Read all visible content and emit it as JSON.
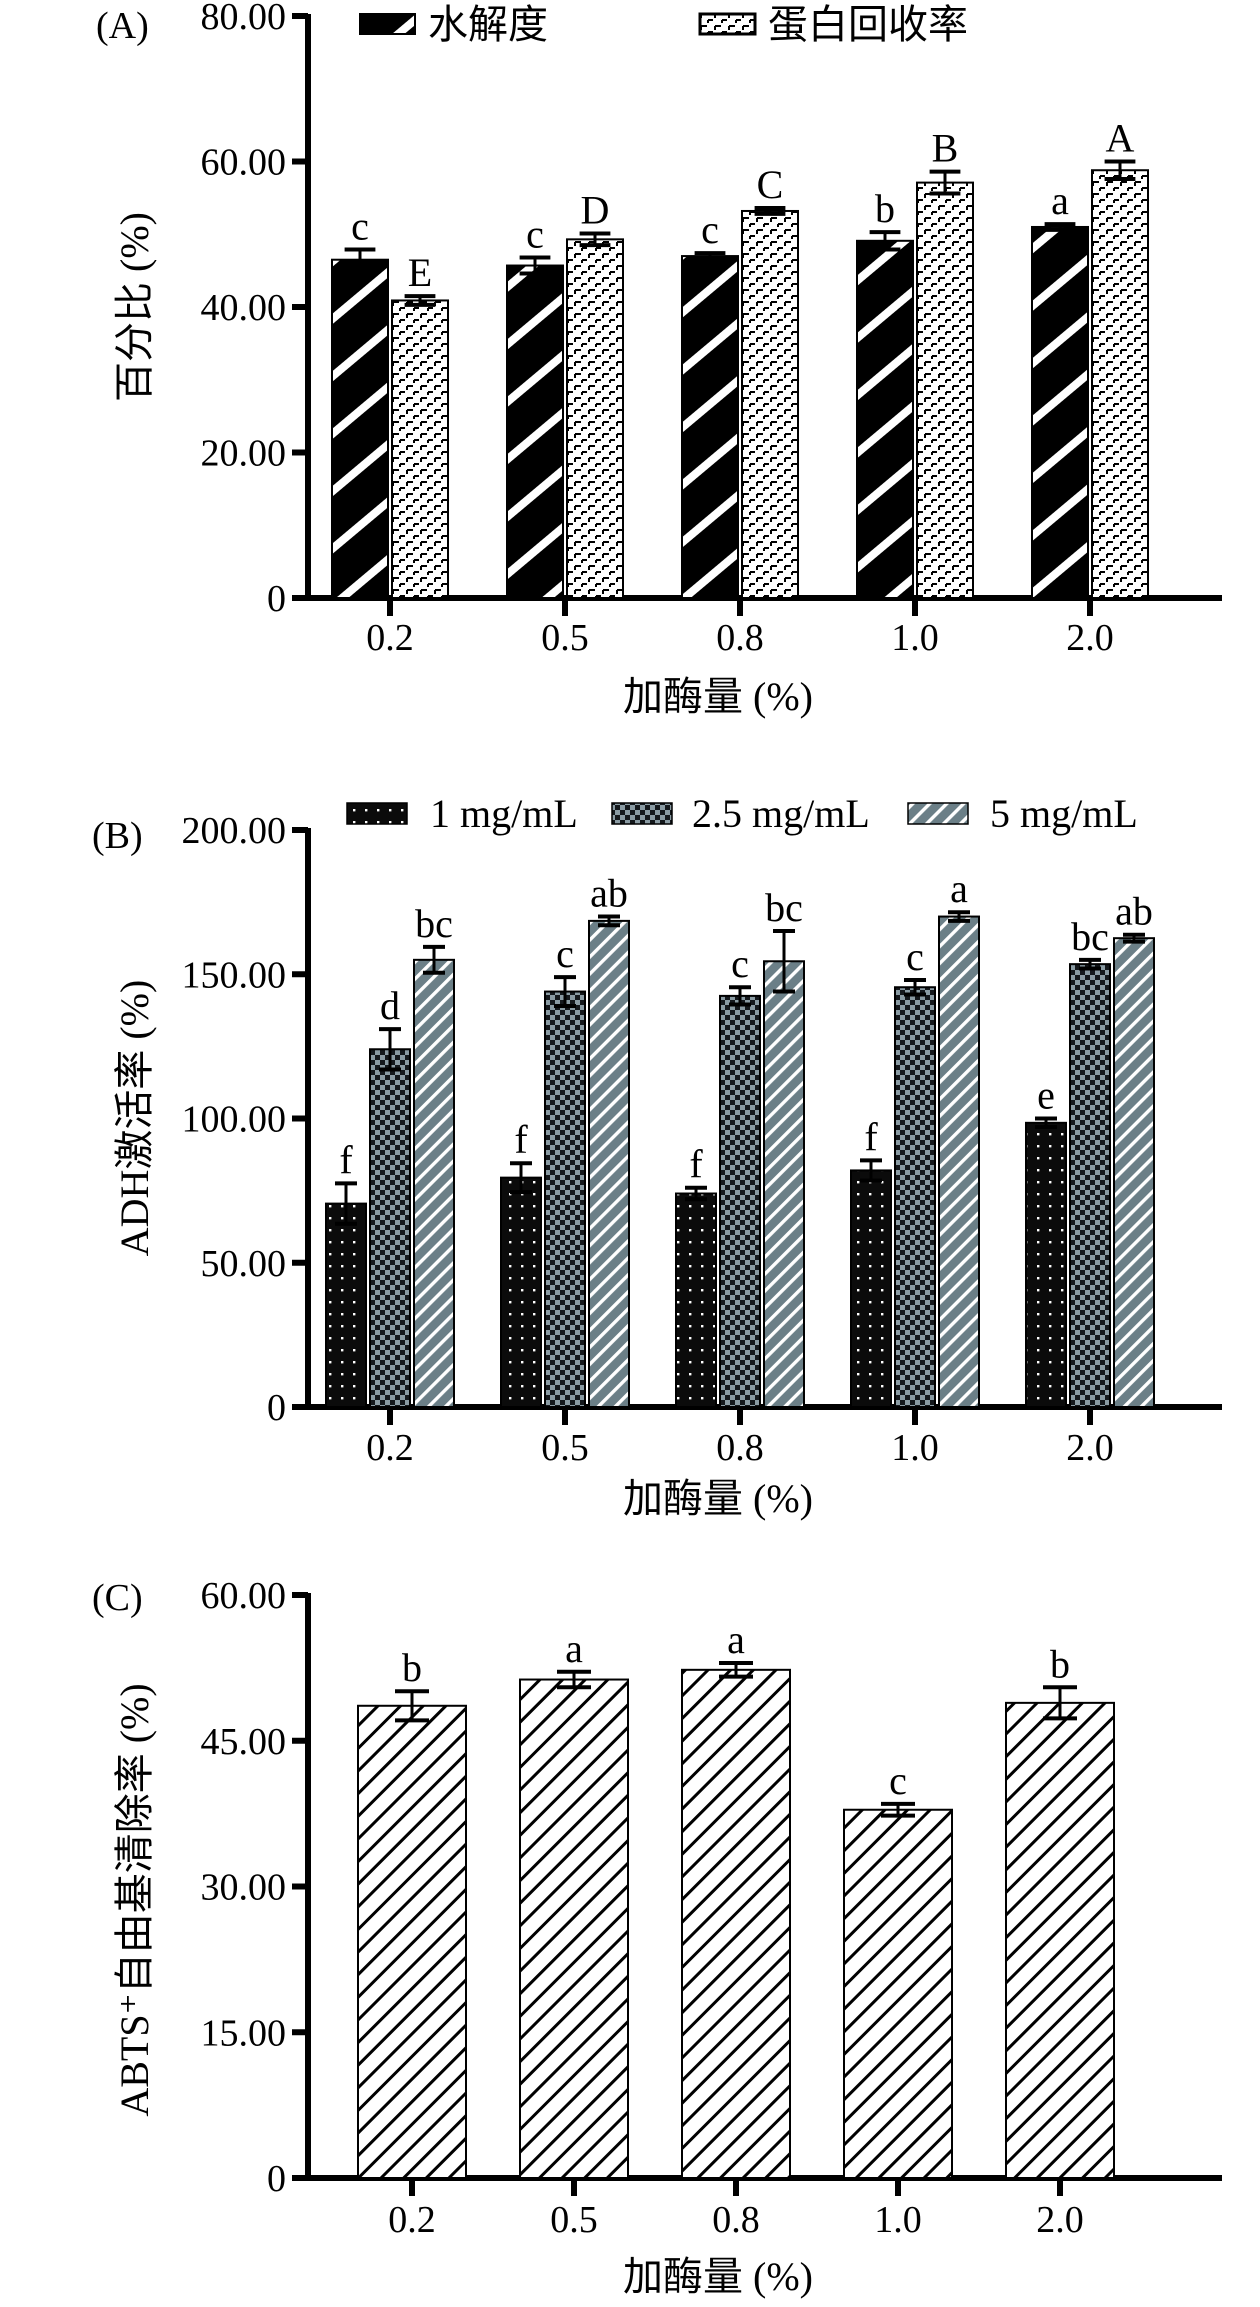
{
  "chart_data": [
    {
      "id": "A",
      "type": "bar",
      "panel_label": "(A)",
      "title": "",
      "xlabel": "加酶量 (%)",
      "ylabel": "百分比 (%)",
      "categories": [
        "0.2",
        "0.5",
        "0.8",
        "1.0",
        "2.0"
      ],
      "ylim": [
        0,
        80
      ],
      "yticks": [
        0,
        20,
        40,
        60,
        80
      ],
      "ytick_labels": [
        "0",
        "20.00",
        "40.00",
        "60.00",
        "80.00"
      ],
      "grid": false,
      "legend_position": "top",
      "series": [
        {
          "name": "水解度",
          "pattern": "diagonal-stripe-black",
          "values": [
            46.5,
            45.7,
            47.0,
            49.1,
            51.0
          ],
          "errors": [
            1.4,
            1.1,
            0.4,
            1.2,
            0.4
          ],
          "significance": [
            "c",
            "c",
            "c",
            "b",
            "a"
          ]
        },
        {
          "name": "蛋白回收率",
          "pattern": "brick-dotted",
          "values": [
            40.9,
            49.3,
            53.2,
            57.1,
            58.8
          ],
          "errors": [
            0.6,
            0.8,
            0.4,
            1.5,
            1.2
          ],
          "significance": [
            "E",
            "D",
            "C",
            "B",
            "A"
          ]
        }
      ]
    },
    {
      "id": "B",
      "type": "bar",
      "panel_label": "(B)",
      "title": "",
      "xlabel": "加酶量 (%)",
      "ylabel": "ADH激活率 (%)",
      "categories": [
        "0.2",
        "0.5",
        "0.8",
        "1.0",
        "2.0"
      ],
      "ylim": [
        0,
        200
      ],
      "yticks": [
        0,
        50,
        100,
        150,
        200
      ],
      "ytick_labels": [
        "0",
        "50.00",
        "100.00",
        "150.00",
        "200.00"
      ],
      "grid": false,
      "legend_position": "top",
      "series": [
        {
          "name": "1 mg/mL",
          "pattern": "dots-black",
          "values": [
            70.5,
            79.5,
            74.0,
            82.0,
            98.5
          ],
          "errors": [
            7.0,
            5.0,
            2.0,
            3.5,
            1.5
          ],
          "significance": [
            "f",
            "f",
            "f",
            "f",
            "e"
          ]
        },
        {
          "name": "2.5 mg/mL",
          "pattern": "checker-gray",
          "values": [
            124.0,
            144.0,
            142.5,
            145.5,
            153.5
          ],
          "errors": [
            7.0,
            5.0,
            3.0,
            2.5,
            1.5
          ],
          "significance": [
            "d",
            "c",
            "c",
            "c",
            "bc"
          ]
        },
        {
          "name": "5 mg/mL",
          "pattern": "diagonal-stripe-gray",
          "values": [
            155.0,
            168.5,
            154.5,
            170.0,
            162.5
          ],
          "errors": [
            4.5,
            1.5,
            10.5,
            1.5,
            1.2
          ],
          "significance": [
            "bc",
            "ab",
            "bc",
            "a",
            "ab"
          ]
        }
      ]
    },
    {
      "id": "C",
      "type": "bar",
      "panel_label": "(C)",
      "title": "",
      "xlabel": "加酶量 (%)",
      "ylabel": "ABTS⁺自由基清除率 (%)",
      "categories": [
        "0.2",
        "0.5",
        "0.8",
        "1.0",
        "2.0"
      ],
      "ylim": [
        0,
        60
      ],
      "yticks": [
        0,
        15,
        30,
        45,
        60
      ],
      "ytick_labels": [
        "0",
        "15.00",
        "30.00",
        "45.00",
        "60.00"
      ],
      "grid": false,
      "legend_position": "none",
      "series": [
        {
          "name": "ABTS",
          "pattern": "fine-diagonal-stripe",
          "values": [
            48.6,
            51.3,
            52.3,
            37.9,
            48.9
          ],
          "errors": [
            1.5,
            0.8,
            0.7,
            0.6,
            1.6
          ],
          "significance": [
            "b",
            "a",
            "a",
            "c",
            "b"
          ]
        }
      ]
    }
  ],
  "colors": {
    "black": "#000000",
    "gray_fill": "#6b7f87",
    "checker_light": "#8a9ba3",
    "dark": "#111418"
  }
}
